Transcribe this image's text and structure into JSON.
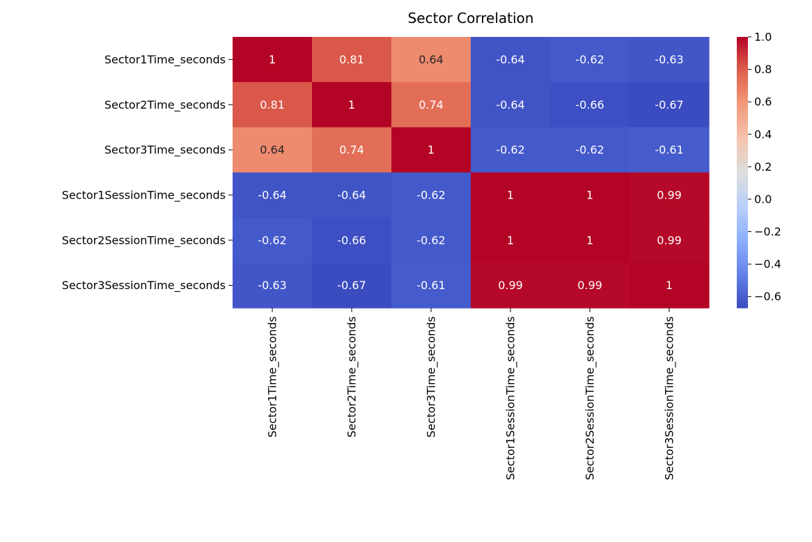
{
  "chart_data": {
    "type": "heatmap",
    "title": "Sector Correlation",
    "xlabel": "",
    "ylabel": "",
    "x_labels": [
      "Sector1Time_seconds",
      "Sector2Time_seconds",
      "Sector3Time_seconds",
      "Sector1SessionTime_seconds",
      "Sector2SessionTime_seconds",
      "Sector3SessionTime_seconds"
    ],
    "y_labels": [
      "Sector1Time_seconds",
      "Sector2Time_seconds",
      "Sector3Time_seconds",
      "Sector1SessionTime_seconds",
      "Sector2SessionTime_seconds",
      "Sector3SessionTime_seconds"
    ],
    "values": [
      [
        1,
        0.81,
        0.64,
        -0.64,
        -0.62,
        -0.63
      ],
      [
        0.81,
        1,
        0.74,
        -0.64,
        -0.66,
        -0.67
      ],
      [
        0.64,
        0.74,
        1,
        -0.62,
        -0.62,
        -0.61
      ],
      [
        -0.64,
        -0.64,
        -0.62,
        1,
        1,
        0.99
      ],
      [
        -0.62,
        -0.66,
        -0.62,
        1,
        1,
        0.99
      ],
      [
        -0.63,
        -0.67,
        -0.61,
        0.99,
        0.99,
        1
      ]
    ],
    "annotations": [
      [
        "1",
        "0.81",
        "0.64",
        "-0.64",
        "-0.62",
        "-0.63"
      ],
      [
        "0.81",
        "1",
        "0.74",
        "-0.64",
        "-0.66",
        "-0.67"
      ],
      [
        "0.64",
        "0.74",
        "1",
        "-0.62",
        "-0.62",
        "-0.61"
      ],
      [
        "-0.64",
        "-0.64",
        "-0.62",
        "1",
        "1",
        "0.99"
      ],
      [
        "-0.62",
        "-0.66",
        "-0.62",
        "1",
        "1",
        "0.99"
      ],
      [
        "-0.63",
        "-0.67",
        "-0.61",
        "0.99",
        "0.99",
        "1"
      ]
    ],
    "colormap": "coolwarm",
    "color_range": [
      -0.67,
      1.0
    ],
    "colorbar": {
      "ticks": [
        1.0,
        0.8,
        0.6,
        0.4,
        0.2,
        0.0,
        -0.2,
        -0.4,
        -0.6
      ],
      "tick_labels": [
        "1.0",
        "0.8",
        "0.6",
        "0.4",
        "0.2",
        "0.0",
        "−0.2",
        "−0.4",
        "−0.6"
      ]
    },
    "grid": false
  }
}
